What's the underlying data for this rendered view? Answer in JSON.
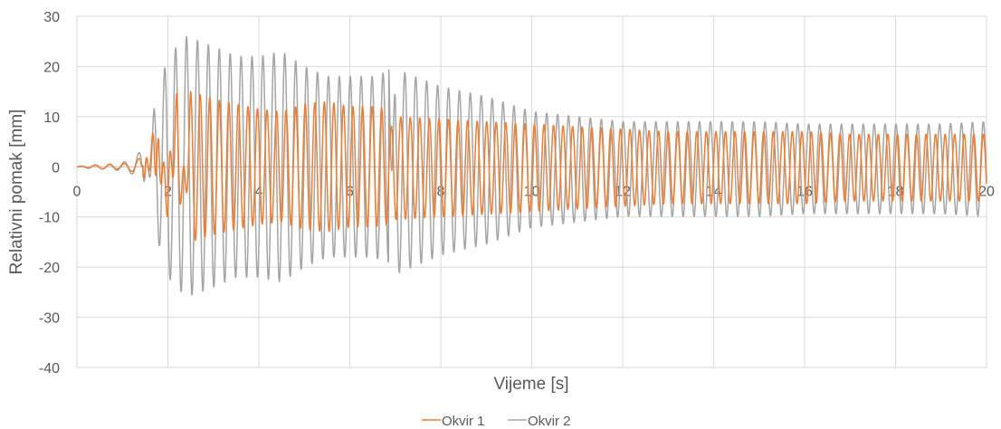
{
  "chart_data": {
    "type": "line",
    "title": "",
    "xlabel": "Vijeme [s]",
    "ylabel": "Relativni pomak [mm]",
    "xlim": [
      0,
      20
    ],
    "ylim": [
      -40,
      30
    ],
    "x_ticks": [
      "0",
      "2",
      "4",
      "6",
      "8",
      "10",
      "12",
      "14",
      "16",
      "18",
      "20"
    ],
    "y_ticks": [
      "30",
      "20",
      "10",
      "0",
      "-10",
      "-20",
      "-30",
      "-40"
    ],
    "grid": "vertical and horizontal",
    "legend_position": "bottom",
    "series": [
      {
        "name": "Okvir 1",
        "color": "#ED7D31",
        "period_s": 0.21,
        "points": [
          [
            0,
            0
          ],
          [
            0.3,
            0.3
          ],
          [
            0.6,
            0.5
          ],
          [
            0.9,
            0.5
          ],
          [
            1.2,
            1.0
          ],
          [
            1.4,
            2.0
          ],
          [
            1.5,
            -4.5
          ],
          [
            1.7,
            9.0
          ],
          [
            1.8,
            -9.5
          ],
          [
            2.0,
            12.0
          ],
          [
            2.2,
            -16.0
          ],
          [
            2.5,
            15.0
          ],
          [
            3.0,
            13.5
          ],
          [
            3.5,
            12.5
          ],
          [
            4.0,
            11.5
          ],
          [
            4.5,
            11.0
          ],
          [
            5.0,
            12.5
          ],
          [
            5.5,
            13.0
          ],
          [
            6.0,
            12.0
          ],
          [
            6.5,
            12.0
          ],
          [
            6.85,
            11.5
          ],
          [
            6.86,
            7.0
          ],
          [
            7.0,
            10.0
          ],
          [
            8.0,
            9.5
          ],
          [
            9.0,
            9.0
          ],
          [
            10.0,
            8.5
          ],
          [
            11.0,
            8.0
          ],
          [
            12.0,
            7.5
          ],
          [
            13.0,
            7.0
          ],
          [
            14.0,
            7.0
          ],
          [
            15.0,
            7.0
          ],
          [
            16.0,
            7.0
          ],
          [
            17.0,
            6.5
          ],
          [
            18.0,
            6.5
          ],
          [
            19.0,
            6.5
          ],
          [
            20.0,
            6.5
          ]
        ]
      },
      {
        "name": "Okvir 2",
        "color": "#A5A5A5",
        "period_s": 0.24,
        "points": [
          [
            0,
            0
          ],
          [
            0.3,
            0.4
          ],
          [
            0.6,
            0.5
          ],
          [
            0.9,
            0.8
          ],
          [
            1.2,
            1.5
          ],
          [
            1.4,
            3.5
          ],
          [
            1.5,
            -6.0
          ],
          [
            1.7,
            12.0
          ],
          [
            2.0,
            22.0
          ],
          [
            2.4,
            26.0
          ],
          [
            3.0,
            24.0
          ],
          [
            3.5,
            22.0
          ],
          [
            4.0,
            22.0
          ],
          [
            4.5,
            23.0
          ],
          [
            5.0,
            20.0
          ],
          [
            5.5,
            18.0
          ],
          [
            6.0,
            18.0
          ],
          [
            6.5,
            18.0
          ],
          [
            6.85,
            19.0
          ],
          [
            6.86,
            -20.0
          ],
          [
            7.0,
            19.5
          ],
          [
            8.0,
            16.0
          ],
          [
            9.0,
            14.0
          ],
          [
            10.0,
            11.0
          ],
          [
            11.0,
            10.0
          ],
          [
            12.0,
            9.0
          ],
          [
            13.0,
            9.0
          ],
          [
            14.0,
            9.0
          ],
          [
            15.0,
            9.0
          ],
          [
            16.0,
            8.5
          ],
          [
            17.0,
            8.5
          ],
          [
            18.0,
            8.5
          ],
          [
            19.0,
            8.5
          ],
          [
            20.0,
            9.0
          ]
        ]
      }
    ]
  }
}
